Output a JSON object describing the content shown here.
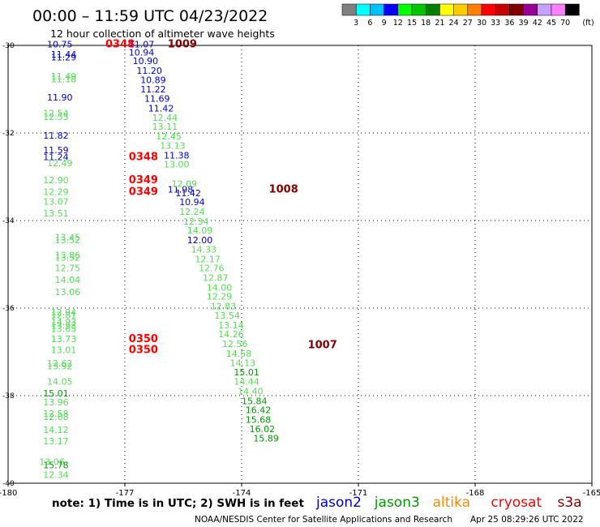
{
  "header": {
    "title": "00:00 – 11:59 UTC 04/23/2022",
    "subtitle": "12 hour collection of altimeter wave heights"
  },
  "legend_scale": {
    "unit": "(ft)",
    "colors": [
      "#808080",
      "#00ffff",
      "#00bfff",
      "#0000ff",
      "#00ff00",
      "#00c800",
      "#008000",
      "#ffff00",
      "#ffcc00",
      "#ff8000",
      "#ff0000",
      "#c80000",
      "#800000",
      "#990099",
      "#c8a0ff",
      "#ff80ff",
      "#000000"
    ],
    "ticks": [
      "3",
      "6",
      "9",
      "12",
      "15",
      "18",
      "21",
      "24",
      "27",
      "30",
      "33",
      "36",
      "39",
      "42",
      "45",
      "70"
    ]
  },
  "footer": {
    "note": "note:  1) Time is in UTC; 2) SWH is in feet",
    "credit": "NOAA/NESDIS Center for Satellite Applications and Research",
    "generated": "Apr 25 08:29:26 UTC 2022"
  },
  "satellites": [
    {
      "name": "jason2",
      "color": "#0000cc"
    },
    {
      "name": "jason3",
      "color": "#009900"
    },
    {
      "name": "altika",
      "color": "#ff8800"
    },
    {
      "name": "cryosat",
      "color": "#ff0000"
    },
    {
      "name": "s3a",
      "color": "#800000"
    }
  ],
  "chart_data": {
    "type": "scatter",
    "title": "12 hour collection of altimeter wave heights",
    "xlim": [
      -180,
      -165
    ],
    "ylim": [
      -40,
      -30
    ],
    "xticks": [
      "-180",
      "-177",
      "-174",
      "-171",
      "-168",
      "-165"
    ],
    "yticks": [
      "-30",
      "-32",
      "-34",
      "-36",
      "-38",
      "-40"
    ],
    "grid": true,
    "time_labels": [
      {
        "lon": -177.5,
        "lat": -30.05,
        "text": "0348",
        "color": "#ff0000"
      },
      {
        "lon": -175.9,
        "lat": -30.05,
        "text": "1009",
        "color": "#800000"
      },
      {
        "lon": -176.9,
        "lat": -32.62,
        "text": "0348",
        "color": "#ff0000"
      },
      {
        "lon": -176.9,
        "lat": -33.15,
        "text": "0349",
        "color": "#ff0000"
      },
      {
        "lon": -176.9,
        "lat": -33.42,
        "text": "0349",
        "color": "#ff0000"
      },
      {
        "lon": -173.3,
        "lat": -33.36,
        "text": "1008",
        "color": "#800000"
      },
      {
        "lon": -176.9,
        "lat": -36.78,
        "text": "0350",
        "color": "#ff0000"
      },
      {
        "lon": -176.9,
        "lat": -37.03,
        "text": "0350",
        "color": "#ff0000"
      },
      {
        "lon": -172.3,
        "lat": -36.92,
        "text": "1007",
        "color": "#800000"
      }
    ],
    "series": [
      {
        "name": "west track",
        "points": [
          {
            "lon": -179.0,
            "lat": -30.05,
            "value": "10.75",
            "color": "#0000cc"
          },
          {
            "lon": -178.9,
            "lat": -30.28,
            "value": "11.44",
            "color": "#0000cc"
          },
          {
            "lon": -178.9,
            "lat": -30.34,
            "value": "11.29",
            "color": "#0000cc"
          },
          {
            "lon": -178.9,
            "lat": -30.78,
            "value": "11.49",
            "color": "#55dd55"
          },
          {
            "lon": -178.9,
            "lat": -30.84,
            "value": "11.18",
            "color": "#55dd55"
          },
          {
            "lon": -179.0,
            "lat": -31.26,
            "value": "11.90",
            "color": "#0000cc"
          },
          {
            "lon": -179.1,
            "lat": -31.62,
            "value": "12.54",
            "color": "#55dd55"
          },
          {
            "lon": -179.1,
            "lat": -31.7,
            "value": "12.55",
            "color": "#55dd55"
          },
          {
            "lon": -179.1,
            "lat": -32.13,
            "value": "11.82",
            "color": "#0000cc"
          },
          {
            "lon": -179.1,
            "lat": -32.46,
            "value": "11.59",
            "color": "#0000cc"
          },
          {
            "lon": -179.1,
            "lat": -32.62,
            "value": "11.24",
            "color": "#0000cc"
          },
          {
            "lon": -179.0,
            "lat": -32.76,
            "value": "12.49",
            "color": "#55dd55"
          },
          {
            "lon": -179.1,
            "lat": -33.15,
            "value": "12.90",
            "color": "#55dd55"
          },
          {
            "lon": -179.1,
            "lat": -33.42,
            "value": "12.29",
            "color": "#55dd55"
          },
          {
            "lon": -179.1,
            "lat": -33.64,
            "value": "13.07",
            "color": "#55dd55"
          },
          {
            "lon": -179.1,
            "lat": -33.91,
            "value": "13.51",
            "color": "#55dd55"
          },
          {
            "lon": -178.8,
            "lat": -34.45,
            "value": "13.45",
            "color": "#55dd55"
          },
          {
            "lon": -178.8,
            "lat": -34.52,
            "value": "13.52",
            "color": "#55dd55"
          },
          {
            "lon": -178.8,
            "lat": -34.86,
            "value": "13.86",
            "color": "#55dd55"
          },
          {
            "lon": -178.8,
            "lat": -34.92,
            "value": "13.52",
            "color": "#55dd55"
          },
          {
            "lon": -178.8,
            "lat": -35.16,
            "value": "12.75",
            "color": "#55dd55"
          },
          {
            "lon": -178.8,
            "lat": -35.43,
            "value": "14.04",
            "color": "#55dd55"
          },
          {
            "lon": -178.8,
            "lat": -35.7,
            "value": "13.06",
            "color": "#55dd55"
          },
          {
            "lon": -178.9,
            "lat": -36.17,
            "value": "12.94",
            "color": "#55dd55"
          },
          {
            "lon": -178.9,
            "lat": -36.23,
            "value": "12.81",
            "color": "#55dd55"
          },
          {
            "lon": -178.9,
            "lat": -36.39,
            "value": "14.93",
            "color": "#55dd55"
          },
          {
            "lon": -178.9,
            "lat": -36.47,
            "value": "13.93",
            "color": "#55dd55"
          },
          {
            "lon": -178.9,
            "lat": -36.55,
            "value": "13.65",
            "color": "#55dd55"
          },
          {
            "lon": -178.9,
            "lat": -36.78,
            "value": "13.73",
            "color": "#55dd55"
          },
          {
            "lon": -178.9,
            "lat": -37.03,
            "value": "13.01",
            "color": "#55dd55"
          },
          {
            "lon": -179.0,
            "lat": -37.33,
            "value": "12.62",
            "color": "#55dd55"
          },
          {
            "lon": -179.0,
            "lat": -37.4,
            "value": "13.92",
            "color": "#55dd55"
          },
          {
            "lon": -179.0,
            "lat": -37.75,
            "value": "14.05",
            "color": "#55dd55"
          },
          {
            "lon": -179.1,
            "lat": -38.02,
            "value": "15.01",
            "color": "#009900"
          },
          {
            "lon": -179.1,
            "lat": -38.22,
            "value": "13.96",
            "color": "#55dd55"
          },
          {
            "lon": -179.1,
            "lat": -38.48,
            "value": "12.58",
            "color": "#55dd55"
          },
          {
            "lon": -179.1,
            "lat": -38.56,
            "value": "12.08",
            "color": "#55dd55"
          },
          {
            "lon": -179.1,
            "lat": -38.85,
            "value": "14.12",
            "color": "#55dd55"
          },
          {
            "lon": -179.1,
            "lat": -39.11,
            "value": "13.17",
            "color": "#55dd55"
          },
          {
            "lon": -179.2,
            "lat": -39.58,
            "value": "13.06",
            "color": "#55dd55"
          },
          {
            "lon": -179.1,
            "lat": -39.66,
            "value": "15.78",
            "color": "#009900"
          },
          {
            "lon": -179.1,
            "lat": -39.88,
            "value": "12.34",
            "color": "#55dd55"
          }
        ]
      },
      {
        "name": "east track",
        "points": [
          {
            "lon": -176.9,
            "lat": -30.05,
            "value": "11.07",
            "color": "#0000cc"
          },
          {
            "lon": -176.9,
            "lat": -30.23,
            "value": "10.94",
            "color": "#0000cc"
          },
          {
            "lon": -176.8,
            "lat": -30.43,
            "value": "10.90",
            "color": "#0000cc"
          },
          {
            "lon": -176.7,
            "lat": -30.65,
            "value": "11.20",
            "color": "#0000cc"
          },
          {
            "lon": -176.6,
            "lat": -30.86,
            "value": "10.89",
            "color": "#0000cc"
          },
          {
            "lon": -176.6,
            "lat": -31.07,
            "value": "11.22",
            "color": "#0000cc"
          },
          {
            "lon": -176.5,
            "lat": -31.29,
            "value": "11.69",
            "color": "#0000cc"
          },
          {
            "lon": -176.4,
            "lat": -31.51,
            "value": "11.42",
            "color": "#0000cc"
          },
          {
            "lon": -176.3,
            "lat": -31.72,
            "value": "12.44",
            "color": "#55dd55"
          },
          {
            "lon": -176.3,
            "lat": -31.93,
            "value": "13.11",
            "color": "#55dd55"
          },
          {
            "lon": -176.2,
            "lat": -32.15,
            "value": "12.45",
            "color": "#55dd55"
          },
          {
            "lon": -176.1,
            "lat": -32.36,
            "value": "13.13",
            "color": "#55dd55"
          },
          {
            "lon": -176.0,
            "lat": -32.58,
            "value": "11.38",
            "color": "#0000cc"
          },
          {
            "lon": -176.0,
            "lat": -32.79,
            "value": "13.00",
            "color": "#55dd55"
          },
          {
            "lon": -175.9,
            "lat": -33.36,
            "value": "11.98",
            "color": "#0000cc"
          },
          {
            "lon": -175.8,
            "lat": -33.23,
            "value": "12.09",
            "color": "#55dd55"
          },
          {
            "lon": -175.7,
            "lat": -33.44,
            "value": "11.42",
            "color": "#0000cc"
          },
          {
            "lon": -175.6,
            "lat": -33.65,
            "value": "10.94",
            "color": "#0000cc"
          },
          {
            "lon": -175.6,
            "lat": -33.87,
            "value": "12.24",
            "color": "#55dd55"
          },
          {
            "lon": -175.5,
            "lat": -34.09,
            "value": "12.34",
            "color": "#55dd55"
          },
          {
            "lon": -175.4,
            "lat": -34.3,
            "value": "14.09",
            "color": "#55dd55"
          },
          {
            "lon": -175.4,
            "lat": -34.52,
            "value": "12.00",
            "color": "#0000cc"
          },
          {
            "lon": -175.3,
            "lat": -34.73,
            "value": "14.33",
            "color": "#55dd55"
          },
          {
            "lon": -175.2,
            "lat": -34.95,
            "value": "12.17",
            "color": "#55dd55"
          },
          {
            "lon": -175.1,
            "lat": -35.16,
            "value": "12.76",
            "color": "#55dd55"
          },
          {
            "lon": -175.0,
            "lat": -35.38,
            "value": "12.87",
            "color": "#55dd55"
          },
          {
            "lon": -174.9,
            "lat": -35.6,
            "value": "14.00",
            "color": "#55dd55"
          },
          {
            "lon": -174.9,
            "lat": -35.81,
            "value": "12.29",
            "color": "#55dd55"
          },
          {
            "lon": -174.8,
            "lat": -36.03,
            "value": "12.83",
            "color": "#55dd55"
          },
          {
            "lon": -174.7,
            "lat": -36.24,
            "value": "13.54",
            "color": "#55dd55"
          },
          {
            "lon": -174.6,
            "lat": -36.46,
            "value": "13.14",
            "color": "#55dd55"
          },
          {
            "lon": -174.6,
            "lat": -36.67,
            "value": "14.26",
            "color": "#55dd55"
          },
          {
            "lon": -174.5,
            "lat": -36.89,
            "value": "12.56",
            "color": "#55dd55"
          },
          {
            "lon": -174.4,
            "lat": -37.11,
            "value": "14.58",
            "color": "#55dd55"
          },
          {
            "lon": -174.3,
            "lat": -37.32,
            "value": "14.13",
            "color": "#55dd55"
          },
          {
            "lon": -174.2,
            "lat": -37.54,
            "value": "15.01",
            "color": "#009900"
          },
          {
            "lon": -174.2,
            "lat": -37.75,
            "value": "14.44",
            "color": "#55dd55"
          },
          {
            "lon": -174.1,
            "lat": -37.97,
            "value": "14.40",
            "color": "#55dd55"
          },
          {
            "lon": -174.0,
            "lat": -38.19,
            "value": "15.84",
            "color": "#009900"
          },
          {
            "lon": -173.9,
            "lat": -38.4,
            "value": "16.42",
            "color": "#009900"
          },
          {
            "lon": -173.9,
            "lat": -38.62,
            "value": "15.68",
            "color": "#009900"
          },
          {
            "lon": -173.8,
            "lat": -38.83,
            "value": "16.02",
            "color": "#009900"
          },
          {
            "lon": -173.7,
            "lat": -39.05,
            "value": "15.89",
            "color": "#009900"
          }
        ]
      }
    ]
  }
}
